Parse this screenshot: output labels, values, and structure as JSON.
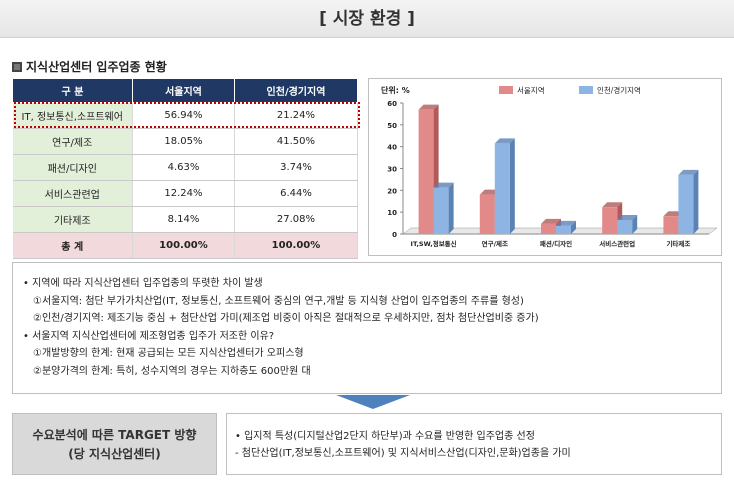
{
  "page_title": "[ 시장 환경 ]",
  "section_title": "지식산업센터 입주업종 현황",
  "table": {
    "headers": [
      "구   분",
      "서울지역",
      "인천/경기지역"
    ],
    "rows": [
      {
        "cat": "IT, 정보통신,소프트웨어",
        "seoul": "56.94%",
        "incheon": "21.24%"
      },
      {
        "cat": "연구/제조",
        "seoul": "18.05%",
        "incheon": "41.50%"
      },
      {
        "cat": "패션/디자인",
        "seoul": "4.63%",
        "incheon": "3.74%"
      },
      {
        "cat": "서비스관련업",
        "seoul": "12.24%",
        "incheon": "6.44%"
      },
      {
        "cat": "기타제조",
        "seoul": "8.14%",
        "incheon": "27.08%"
      }
    ],
    "total": {
      "cat": "총   계",
      "seoul": "100.00%",
      "incheon": "100.00%"
    }
  },
  "chart_data": {
    "type": "bar",
    "unit_label": "단위: %",
    "categories": [
      "IT,SW,정보통신",
      "연구/제조",
      "패션/디자인",
      "서비스관련업",
      "기타제조"
    ],
    "series": [
      {
        "name": "서울지역",
        "values": [
          56.94,
          18.05,
          4.63,
          12.24,
          8.14
        ],
        "color": "#e28a8a"
      },
      {
        "name": "인천/경기지역",
        "values": [
          21.24,
          41.5,
          3.74,
          6.44,
          27.08
        ],
        "color": "#8db4e2"
      }
    ],
    "ylim": [
      0,
      60
    ],
    "yticks": [
      "0",
      "10",
      "20",
      "30",
      "40",
      "50",
      "60"
    ],
    "legend": "top",
    "grid": false
  },
  "bullets": {
    "b1": "지역에 따라 지식산업센터 입주업종의 뚜렷한 차이 발생",
    "b1_1": "①서울지역: 첨단 부가가치산업(IT, 정보통신, 소프트웨어 중심의 연구,개발 등 지식형 산업이 입주업종의 주류를 형성)",
    "b1_2": "②인천/경기지역: 제조기능 중심 + 첨단산업 가미(제조업 비중이 아직은 절대적으로 우세하지만, 점차 첨단산업비중 증가)",
    "b2": "서울지역 지식산업센터에 제조형업종 입주가 저조한 이유?",
    "b2_1": "①개발방향의 한계: 현재 공급되는 모든 지식산업센터가 오피스형",
    "b2_2": "②분양가격의 한계: 특히, 성수지역의 경우는 지하층도 600만원 대"
  },
  "target": {
    "line1": "수요분석에 따른 TARGET 방향",
    "line2": "(당 지식산업센터)",
    "desc1": "입지적 특성(디지털산업2단지 하단부)과 수요를 반영한 입주업종 선정",
    "desc2": "- 첨단산업(IT,정보통신,소프트웨어) 및 지식서비스산업(디자인,문화)업종을 가미"
  }
}
